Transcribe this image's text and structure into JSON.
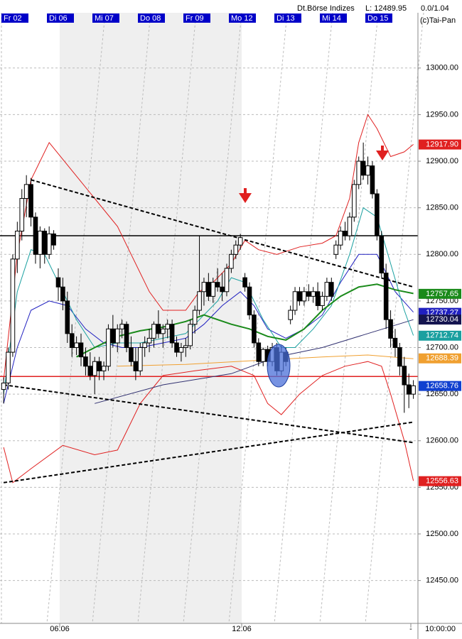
{
  "header": {
    "source": "Dt.Börse Indizes",
    "low": "L: 12489.95",
    "ratio": "0.0/1.04",
    "copyright": "(c)Tai-Pan"
  },
  "chart_data": {
    "type": "candlestick",
    "days": [
      "Fr 02",
      "Di 06",
      "Mi 07",
      "Do 08",
      "Fr 09",
      "Mo 12",
      "Di 13",
      "Mi 14",
      "Do 15"
    ],
    "dates": [
      "06.06",
      "12.06",
      "-"
    ],
    "time": "10:00:00",
    "ylim": [
      12404,
      13073
    ],
    "xlim": [
      -0.8,
      91
    ],
    "yticks": [
      {
        "value": 13000,
        "label": "13000.00"
      },
      {
        "value": 12950,
        "label": "12950.00"
      },
      {
        "value": 12900,
        "label": "12900.00"
      },
      {
        "value": 12850,
        "label": "12850.00"
      },
      {
        "value": 12800,
        "label": "12800.00"
      },
      {
        "value": 12750,
        "label": "12750.00"
      },
      {
        "value": 12700,
        "label": "12700.00"
      },
      {
        "value": 12650,
        "label": "12650.00"
      },
      {
        "value": 12600,
        "label": "12600.00"
      },
      {
        "value": 12550,
        "label": "12550.00"
      },
      {
        "value": 12500,
        "label": "12500.00"
      },
      {
        "value": 12450,
        "label": "12450.00"
      }
    ],
    "grid": true,
    "candles": [
      [
        12655,
        12668,
        12640,
        12662
      ],
      [
        12662,
        12700,
        12655,
        12695
      ],
      [
        12695,
        12800,
        12690,
        12795
      ],
      [
        12795,
        12835,
        12780,
        12825
      ],
      [
        12825,
        12870,
        12815,
        12860
      ],
      [
        12860,
        12885,
        12840,
        12875
      ],
      [
        12875,
        12882,
        12830,
        12840
      ],
      [
        12840,
        12845,
        12790,
        12800
      ],
      [
        12800,
        12830,
        12785,
        12825
      ],
      [
        12825,
        12828,
        12790,
        12800
      ],
      [
        12800,
        12830,
        12795,
        12822
      ],
      [
        12822,
        12826,
        12805,
        12810
      ],
      [
        12775,
        12785,
        12750,
        12765
      ],
      [
        12765,
        12775,
        12740,
        12750
      ],
      [
        12750,
        12760,
        12705,
        12715
      ],
      [
        12715,
        12725,
        12690,
        12700
      ],
      [
        12700,
        12712,
        12692,
        12705
      ],
      [
        12705,
        12715,
        12680,
        12690
      ],
      [
        12690,
        12700,
        12670,
        12680
      ],
      [
        12680,
        12695,
        12665,
        12670
      ],
      [
        12670,
        12690,
        12650,
        12685
      ],
      [
        12685,
        12690,
        12665,
        12675
      ],
      [
        12675,
        12685,
        12665,
        12680
      ],
      [
        12680,
        12725,
        12675,
        12720
      ],
      [
        12720,
        12735,
        12700,
        12705
      ],
      [
        12705,
        12725,
        12695,
        12720
      ],
      [
        12720,
        12730,
        12710,
        12725
      ],
      [
        12725,
        12728,
        12695,
        12700
      ],
      [
        12700,
        12712,
        12680,
        12685
      ],
      [
        12685,
        12700,
        12665,
        12675
      ],
      [
        12675,
        12705,
        12670,
        12700
      ],
      [
        12700,
        12712,
        12690,
        12705
      ],
      [
        12705,
        12720,
        12695,
        12710
      ],
      [
        12710,
        12728,
        12700,
        12725
      ],
      [
        12725,
        12740,
        12710,
        12715
      ],
      [
        12715,
        12725,
        12700,
        12720
      ],
      [
        12720,
        12730,
        12710,
        12725
      ],
      [
        12725,
        12730,
        12700,
        12705
      ],
      [
        12705,
        12712,
        12690,
        12695
      ],
      [
        12695,
        12705,
        12685,
        12700
      ],
      [
        12700,
        12710,
        12690,
        12702
      ],
      [
        12702,
        12730,
        12698,
        12725
      ],
      [
        12725,
        12745,
        12715,
        12740
      ],
      [
        12740,
        12820,
        12735,
        12760
      ],
      [
        12760,
        12775,
        12745,
        12770
      ],
      [
        12770,
        12780,
        12750,
        12755
      ],
      [
        12755,
        12775,
        12748,
        12770
      ],
      [
        12770,
        12785,
        12760,
        12765
      ],
      [
        12765,
        12780,
        12750,
        12760
      ],
      [
        12760,
        12790,
        12755,
        12785
      ],
      [
        12785,
        12805,
        12780,
        12800
      ],
      [
        12800,
        12815,
        12795,
        12810
      ],
      [
        12810,
        12822,
        12805,
        12818
      ],
      [
        12775,
        12780,
        12760,
        12765
      ],
      [
        12765,
        12770,
        12730,
        12735
      ],
      [
        12735,
        12740,
        12700,
        12705
      ],
      [
        12705,
        12710,
        12680,
        12685
      ],
      [
        12685,
        12700,
        12680,
        12698
      ],
      [
        12698,
        12702,
        12680,
        12685
      ],
      [
        12685,
        12705,
        12680,
        12700
      ],
      [
        12700,
        12705,
        12670,
        12675
      ],
      [
        12675,
        12702,
        12670,
        12695
      ],
      [
        12695,
        12700,
        12680,
        12685
      ],
      [
        12730,
        12745,
        12725,
        12740
      ],
      [
        12740,
        12765,
        12735,
        12760
      ],
      [
        12760,
        12765,
        12745,
        12750
      ],
      [
        12750,
        12765,
        12745,
        12760
      ],
      [
        12760,
        12768,
        12750,
        12755
      ],
      [
        12755,
        12765,
        12748,
        12760
      ],
      [
        12760,
        12770,
        12740,
        12745
      ],
      [
        12745,
        12760,
        12740,
        12755
      ],
      [
        12755,
        12775,
        12750,
        12770
      ],
      [
        12770,
        12775,
        12750,
        12755
      ],
      [
        12800,
        12815,
        12795,
        12810
      ],
      [
        12810,
        12830,
        12805,
        12825
      ],
      [
        12825,
        12835,
        12815,
        12820
      ],
      [
        12820,
        12845,
        12815,
        12840
      ],
      [
        12840,
        12880,
        12835,
        12875
      ],
      [
        12875,
        12905,
        12870,
        12900
      ],
      [
        12900,
        12920,
        12880,
        12885
      ],
      [
        12885,
        12905,
        12875,
        12895
      ],
      [
        12895,
        12900,
        12860,
        12865
      ],
      [
        12865,
        12870,
        12815,
        12820
      ],
      [
        12820,
        12825,
        12775,
        12780
      ],
      [
        12780,
        12790,
        12720,
        12730
      ],
      [
        12730,
        12740,
        12700,
        12710
      ],
      [
        12710,
        12720,
        12690,
        12700
      ],
      [
        12700,
        12705,
        12670,
        12680
      ],
      [
        12680,
        12690,
        12630,
        12660
      ],
      [
        12660,
        12672,
        12635,
        12650
      ],
      [
        12650,
        12665,
        12645,
        12659
      ]
    ],
    "series": [
      {
        "color": "#e02020",
        "width": 1,
        "x": [
          0,
          3,
          6,
          10,
          15,
          20,
          25,
          28,
          32,
          35,
          40,
          43,
          46,
          50,
          53,
          56,
          60,
          65,
          70,
          73,
          76,
          78,
          80,
          82,
          85,
          88,
          90
        ],
        "values": [
          12665,
          12800,
          12880,
          12920,
          12890,
          12860,
          12830,
          12800,
          12760,
          12740,
          12740,
          12760,
          12770,
          12790,
          12815,
          12805,
          12800,
          12808,
          12812,
          12820,
          12860,
          12920,
          12950,
          12935,
          12905,
          12910,
          12918
        ]
      },
      {
        "color": "#e02020",
        "width": 1,
        "x": [
          0,
          2,
          6,
          13,
          20,
          25,
          30,
          35,
          42,
          50,
          55,
          58,
          61,
          65,
          70,
          75,
          80,
          83,
          85,
          88,
          90
        ],
        "values": [
          12593,
          12555,
          12570,
          12595,
          12585,
          12590,
          12640,
          12670,
          12675,
          12680,
          12670,
          12640,
          12628,
          12650,
          12670,
          12680,
          12685,
          12680,
          12650,
          12600,
          12557
        ]
      },
      {
        "color": "#303070",
        "width": 1,
        "x": [
          20,
          35,
          50,
          60,
          70,
          80,
          90
        ],
        "values": [
          12640,
          12660,
          12672,
          12690,
          12700,
          12715,
          12730
        ]
      },
      {
        "color": "#f0a030",
        "width": 1,
        "x": [
          25,
          40,
          55,
          70,
          80,
          90
        ],
        "values": [
          12680,
          12682,
          12686,
          12690,
          12692,
          12688
        ]
      },
      {
        "color": "#2020c0",
        "width": 1,
        "x": [
          0,
          3,
          6,
          10,
          14,
          18,
          22,
          26,
          30,
          35,
          40,
          44,
          48,
          52,
          55,
          58,
          62,
          66,
          70,
          74,
          78,
          82,
          86,
          90
        ],
        "values": [
          12640,
          12700,
          12740,
          12750,
          12745,
          12720,
          12705,
          12700,
          12700,
          12705,
          12710,
          12725,
          12745,
          12760,
          12745,
          12720,
          12710,
          12720,
          12735,
          12770,
          12800,
          12800,
          12760,
          12738
        ]
      },
      {
        "color": "#1aa0a0",
        "width": 1,
        "x": [
          0,
          3,
          6,
          9,
          12,
          16,
          20,
          25,
          30,
          35,
          40,
          43,
          47,
          50,
          53,
          57,
          61,
          64,
          68,
          72,
          76,
          79,
          82,
          85,
          88,
          90
        ],
        "values": [
          12650,
          12760,
          12805,
          12800,
          12770,
          12730,
          12700,
          12705,
          12705,
          12710,
          12715,
          12730,
          12750,
          12775,
          12770,
          12730,
          12700,
          12700,
          12720,
          12745,
          12800,
          12850,
          12840,
          12790,
          12740,
          12713
        ]
      },
      {
        "color": "#1a8a1a",
        "width": 2,
        "x": [
          16,
          20,
          25,
          30,
          35,
          40,
          44,
          47,
          50,
          54,
          58,
          62,
          66,
          70,
          74,
          78,
          82,
          86,
          90
        ],
        "values": [
          12690,
          12700,
          12712,
          12718,
          12722,
          12728,
          12735,
          12730,
          12725,
          12720,
          12712,
          12708,
          12720,
          12740,
          12755,
          12765,
          12768,
          12762,
          12758
        ]
      }
    ],
    "trendlines": [
      {
        "x": [
          6,
          90
        ],
        "values": [
          12880,
          12765
        ]
      },
      {
        "x": [
          0,
          90
        ],
        "values": [
          12660,
          12598
        ]
      },
      {
        "x": [
          0,
          90
        ],
        "values": [
          12555,
          12620
        ]
      }
    ],
    "hlines": [
      {
        "value": 12820,
        "color": "#000"
      },
      {
        "value": 12669,
        "color": "#e02020"
      }
    ],
    "price_labels": [
      {
        "value": 12917.9,
        "label": "12917.90",
        "color": "#e02020"
      },
      {
        "value": 12757.65,
        "color": "#1a8a1a"
      },
      {
        "value": 12737.27,
        "color": "#2020c0"
      },
      {
        "value": 12730.04,
        "color": "#151550"
      },
      {
        "value": 12712.74,
        "color": "#1aa0a0"
      },
      {
        "value": 12688.39,
        "color": "#f0a030"
      },
      {
        "value": 12658.76,
        "color": "#1040d0"
      },
      {
        "value": 12556.63,
        "color": "#e02020"
      }
    ]
  }
}
